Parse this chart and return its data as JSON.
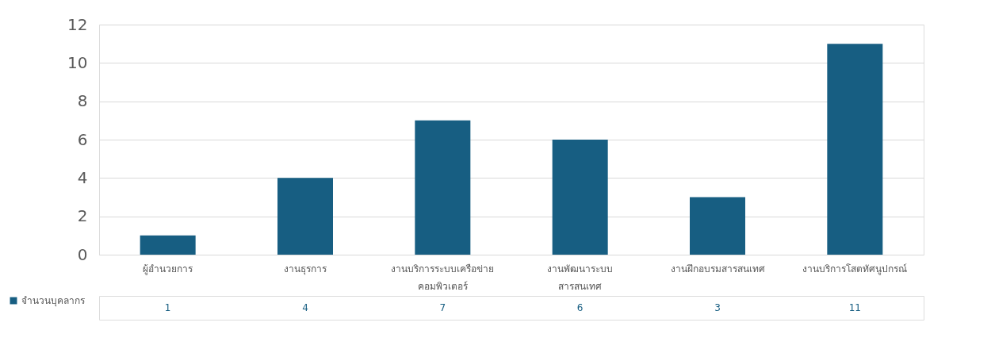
{
  "chart_data": {
    "type": "bar",
    "categories": [
      "ผู้อำนวยการ",
      "งานธุรการ",
      "งานบริการระบบเครือข่าย คอมพิวเตอร์",
      "งานพัฒนาระบบ สารสนเทศ",
      "งานฝึกอบรมสารสนเทศ",
      "งานบริการโสตทัศนูปกรณ์"
    ],
    "series": [
      {
        "name": "จำนวนบุคลากร",
        "color": "#175e82",
        "values": [
          1,
          4,
          7,
          6,
          3,
          11
        ]
      }
    ],
    "ylim": [
      0,
      12
    ],
    "yticks": [
      0,
      2,
      4,
      6,
      8,
      10,
      12
    ],
    "grid": "y",
    "data_labels": true,
    "legend": "bottom left"
  }
}
